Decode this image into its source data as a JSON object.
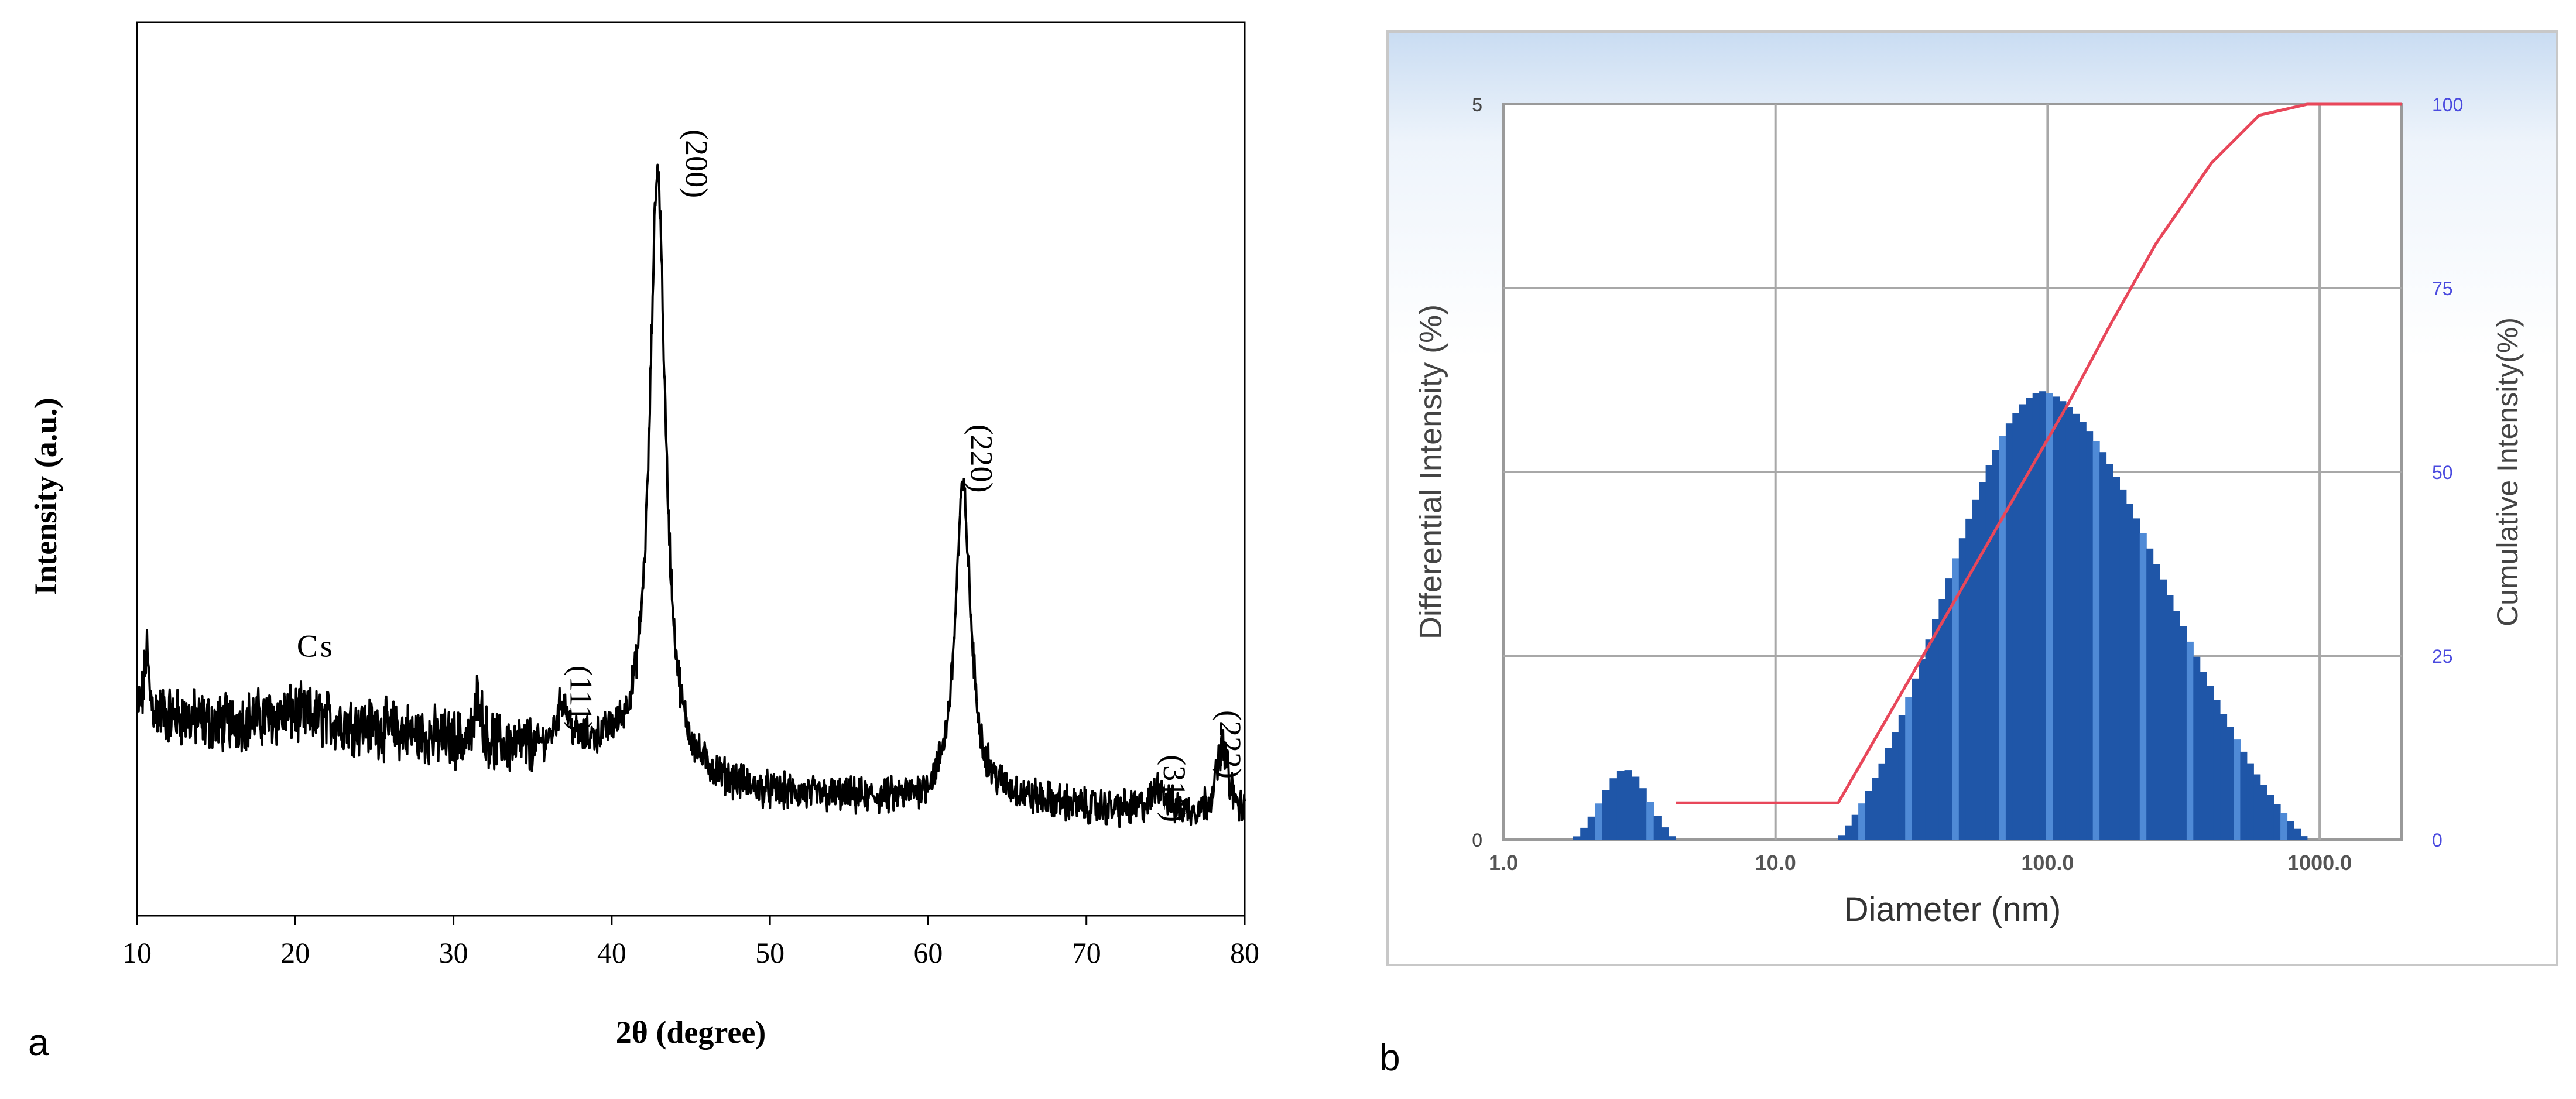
{
  "chart_data": [
    {
      "type": "line",
      "panel_label": "a",
      "title": "",
      "xlabel": "2θ (degree)",
      "ylabel": "Intensity (a.u.)",
      "xlim": [
        10,
        80
      ],
      "ylim": [
        0,
        100
      ],
      "xticks": [
        10,
        20,
        30,
        40,
        50,
        60,
        70,
        80
      ],
      "baseline": [
        [
          10,
          23.0
        ],
        [
          15,
          21.5
        ],
        [
          20,
          22.5
        ],
        [
          25,
          21.0
        ],
        [
          30,
          19.5
        ],
        [
          35,
          18.5
        ],
        [
          40,
          18.5
        ],
        [
          45,
          15.0
        ],
        [
          50,
          13.5
        ],
        [
          55,
          13.0
        ],
        [
          60,
          12.5
        ],
        [
          65,
          13.0
        ],
        [
          70,
          12.0
        ],
        [
          75,
          11.5
        ],
        [
          80,
          11.0
        ]
      ],
      "peaks": [
        {
          "x": 10.6,
          "height": 7,
          "width": 0.15
        },
        {
          "x": 31.6,
          "height": 6,
          "width": 0.2
        },
        {
          "x": 36.9,
          "height": 5,
          "width": 0.45
        },
        {
          "x": 42.9,
          "height": 67,
          "width": 0.6
        },
        {
          "x": 62.2,
          "height": 35,
          "width": 0.6
        },
        {
          "x": 74.6,
          "height": 3,
          "width": 0.45
        },
        {
          "x": 78.6,
          "height": 8,
          "width": 0.45
        }
      ],
      "annotations": [
        {
          "text": "Cs",
          "x": 21.3,
          "y": 29,
          "rotate": false
        },
        {
          "text": "(111)",
          "x": 37.4,
          "y": 28,
          "rotate": true
        },
        {
          "text": "(200)",
          "x": 44.7,
          "y": 88,
          "rotate": true
        },
        {
          "text": "(220)",
          "x": 62.7,
          "y": 55,
          "rotate": true
        },
        {
          "text": "(311)",
          "x": 74.9,
          "y": 18,
          "rotate": true
        },
        {
          "text": "(222)",
          "x": 78.4,
          "y": 23,
          "rotate": true
        }
      ]
    },
    {
      "type": "bar",
      "panel_label": "b",
      "xlabel": "Diameter (nm)",
      "ylabel": "Differential Intensity (%)",
      "ylabel_right": "Cumulative Intensity(%)",
      "x_scale": "log",
      "xlim": [
        1.0,
        2000.0
      ],
      "ylim": [
        0,
        5
      ],
      "ylim_right": [
        0,
        100
      ],
      "xticks": [
        "1.0",
        "10.0",
        "100.0",
        "1000.0"
      ],
      "yticks_left": [
        "0",
        "5"
      ],
      "yticks_right": [
        "0",
        "25",
        "50",
        "75",
        "100"
      ],
      "differential": {
        "small_mode": {
          "x_range": [
            1.8,
            4.3
          ],
          "peak_x": 2.8,
          "peak": 0.48
        },
        "main_mode": {
          "x_range": [
            17.0,
            900.0
          ],
          "peak_x": 95.0,
          "peak": 3.05
        }
      },
      "cumulative": [
        [
          4.3,
          5.0
        ],
        [
          17.0,
          5.0
        ],
        [
          120.0,
          59.5
        ],
        [
          170.0,
          70.0
        ],
        [
          250.0,
          81.0
        ],
        [
          400.0,
          92.0
        ],
        [
          600.0,
          98.5
        ],
        [
          900.0,
          100.0
        ],
        [
          2000.0,
          100.0
        ]
      ],
      "colors": {
        "bars": "#1f56a8",
        "bar_highlight": "#4f8ad6",
        "cumulative_line": "#e8475a",
        "tick_blue": "#4a4adf"
      }
    }
  ]
}
